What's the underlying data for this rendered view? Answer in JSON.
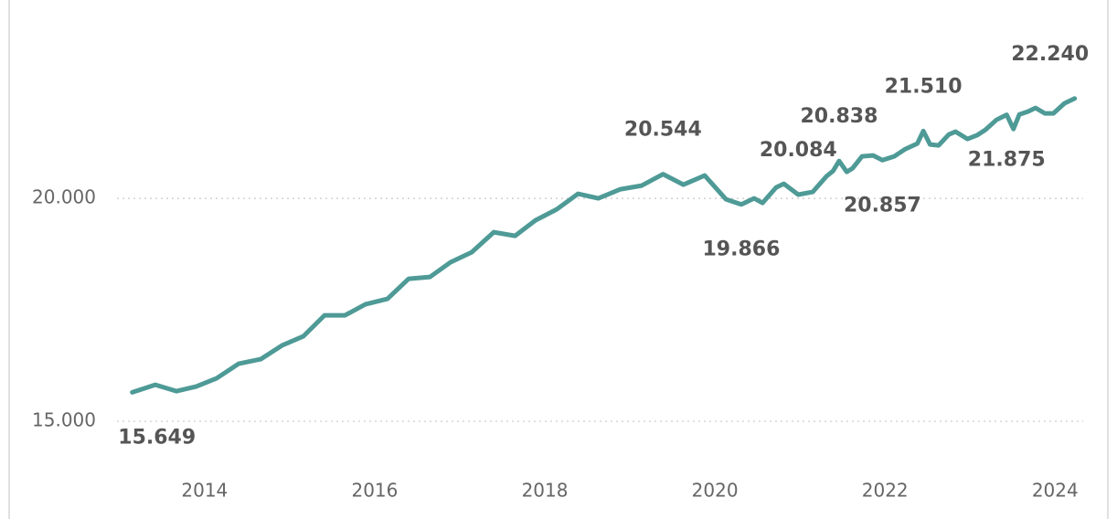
{
  "chart_data": {
    "type": "line",
    "x": [
      2013.15,
      2013.42,
      2013.67,
      2013.9,
      2014.14,
      2014.4,
      2014.66,
      2014.91,
      2015.16,
      2015.41,
      2015.65,
      2015.89,
      2016.15,
      2016.4,
      2016.65,
      2016.89,
      2017.14,
      2017.4,
      2017.65,
      2017.89,
      2018.14,
      2018.39,
      2018.63,
      2018.89,
      2019.14,
      2019.39,
      2019.63,
      2019.88,
      2020.13,
      2020.31,
      2020.46,
      2020.56,
      2020.72,
      2020.81,
      2020.98,
      2021.15,
      2021.31,
      2021.39,
      2021.46,
      2021.55,
      2021.62,
      2021.73,
      2021.86,
      2021.97,
      2022.11,
      2022.24,
      2022.38,
      2022.45,
      2022.53,
      2022.63,
      2022.75,
      2022.83,
      2022.97,
      2023.08,
      2023.18,
      2023.31,
      2023.43,
      2023.51,
      2023.58,
      2023.68,
      2023.77,
      2023.88,
      2023.98,
      2024.11,
      2024.23
    ],
    "series": [
      {
        "color": "#4e9a96",
        "values": [
          15649,
          15820,
          15676,
          15779,
          15963,
          16291,
          16393,
          16701,
          16906,
          17377,
          17377,
          17623,
          17746,
          18197,
          18238,
          18566,
          18791,
          19242,
          19160,
          19508,
          19754,
          20102,
          20000,
          20205,
          20287,
          20544,
          20307,
          20512,
          19980,
          19866,
          20000,
          19898,
          20246,
          20328,
          20084,
          20143,
          20492,
          20615,
          20838,
          20594,
          20676,
          20943,
          20963,
          20857,
          20943,
          21107,
          21230,
          21510,
          21209,
          21189,
          21434,
          21496,
          21332,
          21414,
          21537,
          21762,
          21875,
          21557,
          21885,
          21947,
          22029,
          21906,
          21906,
          22131,
          22240
        ],
        "value_labels": [
          "15.649",
          null,
          null,
          null,
          null,
          null,
          null,
          null,
          null,
          null,
          null,
          null,
          null,
          null,
          null,
          null,
          null,
          null,
          null,
          null,
          null,
          null,
          null,
          null,
          null,
          "20.544",
          null,
          null,
          null,
          "19.866",
          null,
          null,
          null,
          null,
          "20.084",
          null,
          null,
          null,
          "20.838",
          null,
          null,
          null,
          null,
          "20.857",
          null,
          null,
          null,
          "21.510",
          null,
          null,
          null,
          null,
          null,
          null,
          null,
          null,
          "21.875",
          null,
          null,
          null,
          null,
          null,
          null,
          null,
          "22.240"
        ]
      }
    ],
    "xlim": [
      2012.97,
      2024.33
    ],
    "xticks": [
      2014,
      2016,
      2018,
      2020,
      2022,
      2024
    ],
    "ylim": [
      14100,
      24450
    ],
    "yticks": [
      {
        "value": 15000,
        "label": "15.000"
      },
      {
        "value": 20000,
        "label": "20.000"
      }
    ],
    "grid": true
  }
}
